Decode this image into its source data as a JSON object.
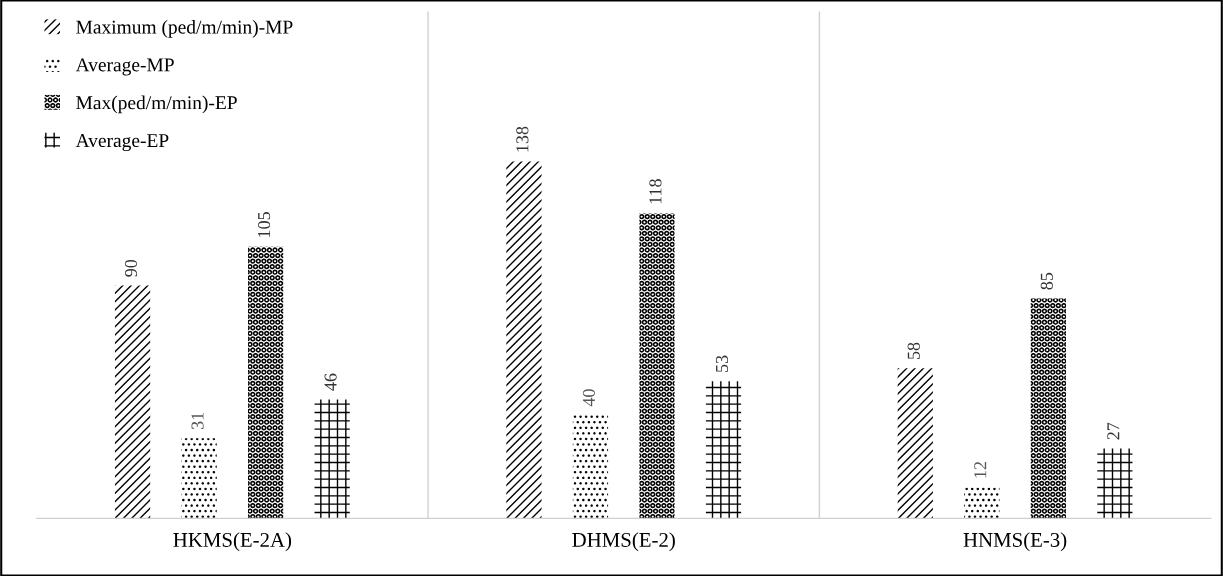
{
  "chart_data": {
    "type": "bar",
    "categories": [
      "HKMS(E-2A)",
      "DHMS(E-2)",
      "HNMS(E-3)"
    ],
    "series": [
      {
        "name": "Maximum (ped/m/min)-MP",
        "color": "#000000",
        "values": [
          90,
          138,
          58
        ]
      },
      {
        "name": "Average-MP",
        "color": "#000000",
        "values": [
          31,
          40,
          12
        ]
      },
      {
        "name": "Max(ped/m/min)-EP",
        "color": "#000000",
        "values": [
          105,
          118,
          85
        ]
      },
      {
        "name": "Average-EP",
        "color": "#000000",
        "values": [
          46,
          53,
          27
        ]
      }
    ],
    "data_labels": true,
    "legend": "top left",
    "grid": "x"
  }
}
